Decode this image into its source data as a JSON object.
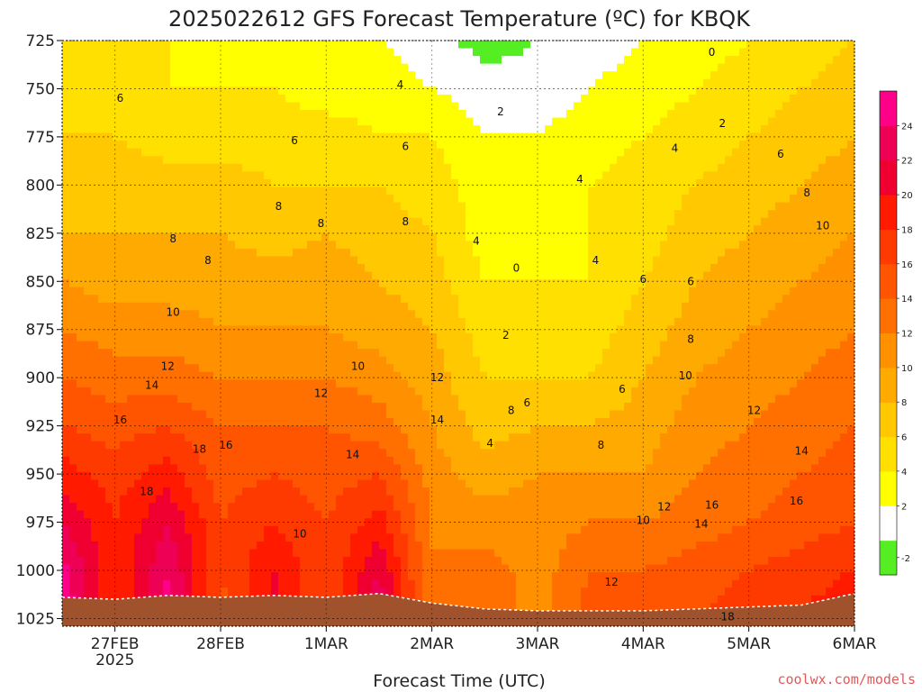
{
  "chart_data": {
    "type": "heatmap",
    "title": "2025022612 GFS Forecast Temperature (ºC) for KBQK",
    "xlabel": "Forecast Time (UTC)",
    "ylabel": "",
    "credit": "coolwx.com/models",
    "x_ticks": [
      {
        "label": "27FEB",
        "sub": "2025"
      },
      {
        "label": "28FEB",
        "sub": ""
      },
      {
        "label": "1MAR",
        "sub": ""
      },
      {
        "label": "2MAR",
        "sub": ""
      },
      {
        "label": "3MAR",
        "sub": ""
      },
      {
        "label": "4MAR",
        "sub": ""
      },
      {
        "label": "5MAR",
        "sub": ""
      },
      {
        "label": "6MAR",
        "sub": ""
      }
    ],
    "x_range_days": [
      0.0,
      7.5
    ],
    "x_tick_days": [
      0.5,
      1.5,
      2.5,
      3.5,
      4.5,
      5.5,
      6.5,
      7.5
    ],
    "y_ticks": [
      "725",
      "750",
      "775",
      "800",
      "825",
      "850",
      "875",
      "900",
      "925",
      "950",
      "975",
      "1000",
      "1025"
    ],
    "y_levels": [
      725,
      750,
      775,
      800,
      825,
      850,
      875,
      900,
      925,
      950,
      975,
      1000,
      1025
    ],
    "y_range": [
      725,
      1029
    ],
    "colorbar": {
      "levels": [
        -2,
        0,
        2,
        4,
        6,
        8,
        10,
        12,
        14,
        16,
        18,
        20,
        22,
        24,
        26
      ],
      "colors": [
        "#55ee22",
        "#ffffff",
        "#ffff00",
        "#ffe000",
        "#ffc800",
        "#ffaa00",
        "#ff9000",
        "#ff7000",
        "#ff5500",
        "#ff3a00",
        "#ff1a00",
        "#f00030",
        "#ee0055",
        "#ff0088"
      ],
      "labels": [
        "-2",
        "2",
        "4",
        "6",
        "8",
        "10",
        "12",
        "14",
        "16",
        "18",
        "20",
        "22",
        "24"
      ]
    },
    "ground_color": "#a0522d",
    "contour_color": "#000000",
    "zero_contour_color": "#cc0077",
    "rows_temperature": [
      [
        4,
        4,
        4,
        3,
        3,
        2,
        2,
        1,
        -1,
        0,
        1,
        2,
        3,
        4,
        5,
        6
      ],
      [
        5,
        5,
        4,
        4,
        4,
        3,
        3,
        2,
        1,
        1,
        2,
        3,
        4,
        5,
        6,
        7
      ],
      [
        6,
        6,
        5,
        5,
        5,
        5,
        4,
        4,
        2,
        2,
        3,
        4,
        5,
        6,
        7,
        8
      ],
      [
        7,
        7,
        7,
        7,
        6,
        6,
        6,
        5,
        3,
        3,
        4,
        5,
        6,
        7,
        8,
        9
      ],
      [
        8,
        8,
        8,
        8,
        7,
        8,
        7,
        6,
        3,
        3,
        4,
        5,
        7,
        8,
        9,
        10
      ],
      [
        10,
        9,
        9,
        9,
        9,
        9,
        8,
        7,
        4,
        4,
        4,
        6,
        8,
        9,
        10,
        11
      ],
      [
        12,
        11,
        11,
        10,
        10,
        10,
        9,
        8,
        5,
        5,
        5,
        7,
        9,
        10,
        11,
        12
      ],
      [
        14,
        13,
        13,
        12,
        12,
        12,
        11,
        9,
        6,
        6,
        6,
        8,
        10,
        11,
        12,
        13
      ],
      [
        16,
        15,
        16,
        14,
        14,
        14,
        13,
        10,
        7,
        8,
        8,
        9,
        11,
        12,
        13,
        14
      ],
      [
        19,
        17,
        19,
        15,
        16,
        15,
        16,
        11,
        9,
        10,
        10,
        10,
        12,
        13,
        14,
        15
      ],
      [
        22,
        18,
        22,
        16,
        18,
        16,
        19,
        12,
        11,
        11,
        12,
        12,
        13,
        14,
        15,
        16
      ],
      [
        25,
        18,
        24,
        16,
        20,
        16,
        22,
        12,
        13,
        11,
        14,
        14,
        15,
        16,
        17,
        18
      ],
      [
        26,
        18,
        25,
        15,
        21,
        16,
        24,
        12,
        14,
        11,
        15,
        15,
        16,
        17,
        18,
        20
      ]
    ],
    "row_levels": [
      725,
      750,
      775,
      800,
      825,
      850,
      875,
      900,
      925,
      950,
      975,
      1000,
      1025
    ],
    "column_days": [
      0.0,
      0.5,
      1.0,
      1.5,
      2.0,
      2.5,
      3.0,
      3.5,
      4.0,
      4.5,
      5.0,
      5.5,
      6.0,
      6.5,
      7.0,
      7.5
    ],
    "surface_pressure": [
      1014,
      1015,
      1013,
      1014,
      1013,
      1014,
      1012,
      1017,
      1020,
      1021,
      1021,
      1021,
      1020,
      1019,
      1018,
      1012
    ],
    "contour_labels": [
      {
        "text": "6",
        "day": 0.55,
        "p": 755
      },
      {
        "text": "4",
        "day": 3.2,
        "p": 748
      },
      {
        "text": "6",
        "day": 2.2,
        "p": 777
      },
      {
        "text": "6",
        "day": 3.25,
        "p": 780
      },
      {
        "text": "2",
        "day": 4.15,
        "p": 762
      },
      {
        "text": "0",
        "day": 6.15,
        "p": 731
      },
      {
        "text": "2",
        "day": 6.25,
        "p": 768
      },
      {
        "text": "4",
        "day": 5.8,
        "p": 781
      },
      {
        "text": "6",
        "day": 6.8,
        "p": 784
      },
      {
        "text": "4",
        "day": 4.9,
        "p": 797
      },
      {
        "text": "8",
        "day": 2.05,
        "p": 811
      },
      {
        "text": "8",
        "day": 2.45,
        "p": 820
      },
      {
        "text": "8",
        "day": 3.25,
        "p": 819
      },
      {
        "text": "8",
        "day": 1.05,
        "p": 828
      },
      {
        "text": "8",
        "day": 1.38,
        "p": 839
      },
      {
        "text": "4",
        "day": 3.92,
        "p": 829
      },
      {
        "text": "0",
        "day": 4.3,
        "p": 843
      },
      {
        "text": "8",
        "day": 7.05,
        "p": 804
      },
      {
        "text": "10",
        "day": 7.2,
        "p": 821
      },
      {
        "text": "4",
        "day": 5.05,
        "p": 839
      },
      {
        "text": "6",
        "day": 5.5,
        "p": 849
      },
      {
        "text": "6",
        "day": 5.95,
        "p": 850
      },
      {
        "text": "10",
        "day": 1.05,
        "p": 866
      },
      {
        "text": "2",
        "day": 4.2,
        "p": 878
      },
      {
        "text": "8",
        "day": 5.95,
        "p": 880
      },
      {
        "text": "12",
        "day": 1.0,
        "p": 894
      },
      {
        "text": "10",
        "day": 2.8,
        "p": 894
      },
      {
        "text": "10",
        "day": 5.9,
        "p": 899
      },
      {
        "text": "12",
        "day": 3.55,
        "p": 900
      },
      {
        "text": "14",
        "day": 0.85,
        "p": 904
      },
      {
        "text": "6",
        "day": 5.3,
        "p": 906
      },
      {
        "text": "12",
        "day": 2.45,
        "p": 908
      },
      {
        "text": "6",
        "day": 4.4,
        "p": 913
      },
      {
        "text": "8",
        "day": 4.25,
        "p": 917
      },
      {
        "text": "12",
        "day": 6.55,
        "p": 917
      },
      {
        "text": "16",
        "day": 0.55,
        "p": 922
      },
      {
        "text": "14",
        "day": 3.55,
        "p": 922
      },
      {
        "text": "18",
        "day": 1.3,
        "p": 937
      },
      {
        "text": "16",
        "day": 1.55,
        "p": 935
      },
      {
        "text": "14",
        "day": 2.75,
        "p": 940
      },
      {
        "text": "4",
        "day": 4.05,
        "p": 934
      },
      {
        "text": "8",
        "day": 5.1,
        "p": 935
      },
      {
        "text": "14",
        "day": 7.0,
        "p": 938
      },
      {
        "text": "18",
        "day": 0.8,
        "p": 959
      },
      {
        "text": "12",
        "day": 5.7,
        "p": 967
      },
      {
        "text": "16",
        "day": 6.15,
        "p": 966
      },
      {
        "text": "16",
        "day": 6.95,
        "p": 964
      },
      {
        "text": "10",
        "day": 5.5,
        "p": 974
      },
      {
        "text": "14",
        "day": 6.05,
        "p": 976
      },
      {
        "text": "10",
        "day": 2.25,
        "p": 981
      },
      {
        "text": "12",
        "day": 5.2,
        "p": 1006
      },
      {
        "text": "18",
        "day": 6.3,
        "p": 1024
      }
    ]
  }
}
